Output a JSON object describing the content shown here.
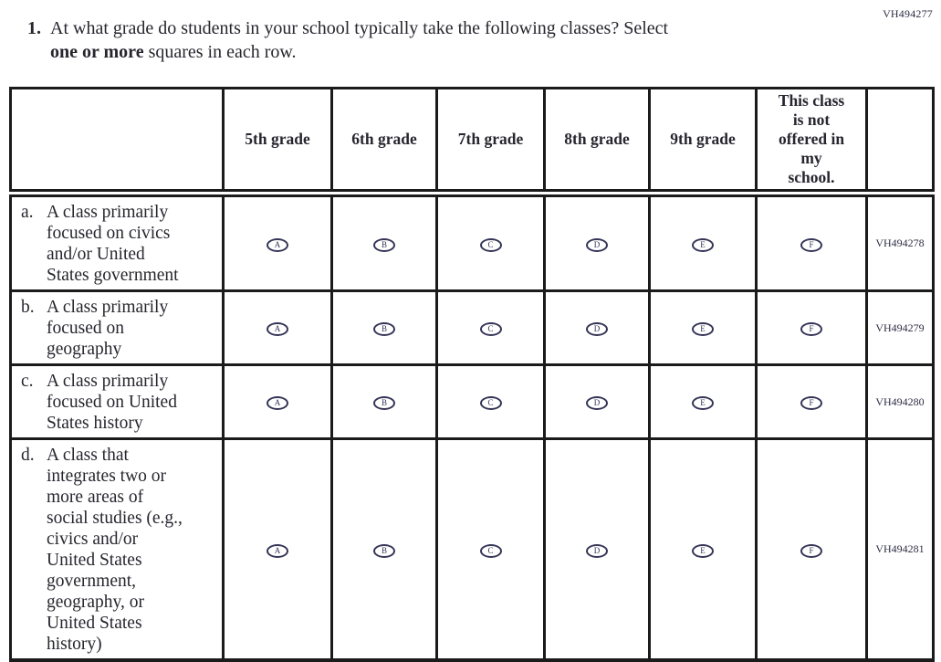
{
  "page_code": "VH494277",
  "question": {
    "number": "1.",
    "line1": "At what grade do students in your school typically take the following classes? Select",
    "line2_bold": "one or more",
    "line2_rest": " squares in each row."
  },
  "table": {
    "column_headers": [
      "5th grade",
      "6th grade",
      "7th grade",
      "8th grade",
      "9th grade"
    ],
    "not_offered_header_lines": [
      "This class",
      "is not",
      "offered in",
      "my",
      "school."
    ],
    "answer_letters": [
      "A",
      "B",
      "C",
      "D",
      "E",
      "F"
    ],
    "rows": [
      {
        "letter": "a.",
        "label_lines": [
          "A class primarily",
          "focused on civics",
          "and/or United",
          "States government"
        ],
        "code": "VH494278"
      },
      {
        "letter": "b.",
        "label_lines": [
          "A class primarily",
          "focused on",
          "geography"
        ],
        "code": "VH494279"
      },
      {
        "letter": "c.",
        "label_lines": [
          "A class primarily",
          "focused on United",
          "States history"
        ],
        "code": "VH494280"
      },
      {
        "letter": "d.",
        "label_lines": [
          "A class that",
          "integrates two or",
          "more areas of",
          "social studies (e.g.,",
          "civics and/or",
          "United States",
          "government,",
          "geography, or",
          "United States",
          "history)"
        ],
        "code": "VH494281"
      }
    ]
  }
}
